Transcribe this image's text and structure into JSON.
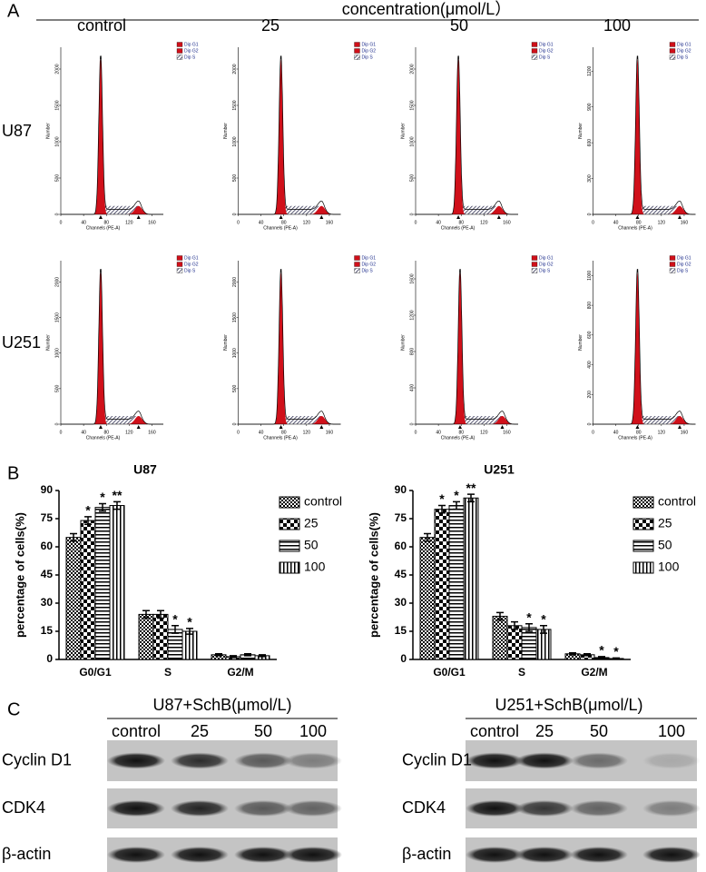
{
  "panel_a": {
    "label": "A",
    "header": "concentration(μmol/L）",
    "columns": [
      "control",
      "25",
      "50",
      "100"
    ],
    "rows": [
      "U87",
      "U251"
    ],
    "legend": [
      "Dip G1",
      "Dip G2",
      "Dip S"
    ],
    "xlabel": "Channels (PE-A)",
    "ylabel": "Number",
    "xlim": [
      0,
      180
    ],
    "xticks": [
      0,
      40,
      80,
      120,
      160
    ],
    "plots": [
      {
        "ylim": [
          0,
          2300
        ],
        "yticks": [
          0,
          500,
          1000,
          1500,
          2000
        ]
      },
      {
        "ylim": [
          0,
          2300
        ],
        "yticks": [
          0,
          500,
          1000,
          1500,
          2000
        ]
      },
      {
        "ylim": [
          0,
          2300
        ],
        "yticks": [
          0,
          500,
          1000,
          1500,
          2000
        ]
      },
      {
        "ylim": [
          0,
          1400
        ],
        "yticks": [
          0,
          300,
          600,
          900,
          1200
        ]
      },
      {
        "ylim": [
          0,
          2300
        ],
        "yticks": [
          0,
          500,
          1000,
          1500,
          2000
        ]
      },
      {
        "ylim": [
          0,
          2300
        ],
        "yticks": [
          0,
          500,
          1000,
          1500,
          2000
        ]
      },
      {
        "ylim": [
          0,
          1800
        ],
        "yticks": [
          0,
          400,
          800,
          1200,
          1600
        ]
      },
      {
        "ylim": [
          0,
          1100
        ],
        "yticks": [
          0,
          200,
          400,
          600,
          800,
          1000
        ]
      }
    ]
  },
  "panel_b": {
    "label": "B"
  },
  "chart_data": [
    {
      "type": "bar",
      "title": "U87",
      "ylabel": "percentage of cells(%)",
      "categories": [
        "G0/G1",
        "S",
        "G2/M"
      ],
      "ylim": [
        0,
        90
      ],
      "yticks": [
        0,
        15,
        30,
        45,
        60,
        75,
        90
      ],
      "series": [
        {
          "name": "control",
          "pattern": "checker-small",
          "color": "#000000",
          "values": [
            65,
            24,
            2.5
          ],
          "errors": [
            2,
            2,
            0.5
          ],
          "significance": [
            null,
            null,
            null
          ]
        },
        {
          "name": "25",
          "pattern": "checker-large",
          "color": "#000000",
          "values": [
            74,
            24,
            1.5
          ],
          "errors": [
            2,
            2,
            0.5
          ],
          "significance": [
            "*",
            null,
            null
          ]
        },
        {
          "name": "50",
          "pattern": "horizontal",
          "color": "#000000",
          "values": [
            81,
            16,
            2.5
          ],
          "errors": [
            2,
            2,
            0.5
          ],
          "significance": [
            "*",
            "*",
            null
          ]
        },
        {
          "name": "100",
          "pattern": "vertical",
          "color": "#000000",
          "values": [
            82,
            15,
            2
          ],
          "errors": [
            2,
            1.5,
            0.5
          ],
          "significance": [
            "**",
            "*",
            null
          ]
        }
      ]
    },
    {
      "type": "bar",
      "title": "U251",
      "ylabel": "percentage of cells(%)",
      "categories": [
        "G0/G1",
        "S",
        "G2/M"
      ],
      "ylim": [
        0,
        90
      ],
      "yticks": [
        0,
        15,
        30,
        45,
        60,
        75,
        90
      ],
      "series": [
        {
          "name": "control",
          "pattern": "checker-small",
          "color": "#000000",
          "values": [
            65,
            23,
            3
          ],
          "errors": [
            2,
            2,
            0.5
          ],
          "significance": [
            null,
            null,
            null
          ]
        },
        {
          "name": "25",
          "pattern": "checker-large",
          "color": "#000000",
          "values": [
            80,
            18,
            2.5
          ],
          "errors": [
            2,
            2,
            0.5
          ],
          "significance": [
            "*",
            null,
            null
          ]
        },
        {
          "name": "50",
          "pattern": "horizontal",
          "color": "#000000",
          "values": [
            82,
            17,
            1
          ],
          "errors": [
            2,
            2,
            0.5
          ],
          "significance": [
            "*",
            "*",
            "*"
          ]
        },
        {
          "name": "100",
          "pattern": "vertical",
          "color": "#000000",
          "values": [
            86,
            16,
            0.5
          ],
          "errors": [
            2,
            2,
            0.3
          ],
          "significance": [
            "**",
            "*",
            "*"
          ]
        }
      ]
    }
  ],
  "panel_c": {
    "label": "C",
    "blots": [
      {
        "title": "U87+SchB(μmol/L)",
        "lanes": [
          "control",
          "25",
          "50",
          "100"
        ],
        "rows": [
          "Cyclin D1",
          "CDK4",
          "β-actin"
        ]
      },
      {
        "title": "U251+SchB(μmol/L)",
        "lanes": [
          "control",
          "25",
          "50",
          "100"
        ],
        "rows": [
          "Cyclin D1",
          "CDK4",
          "β-actin"
        ]
      }
    ]
  }
}
